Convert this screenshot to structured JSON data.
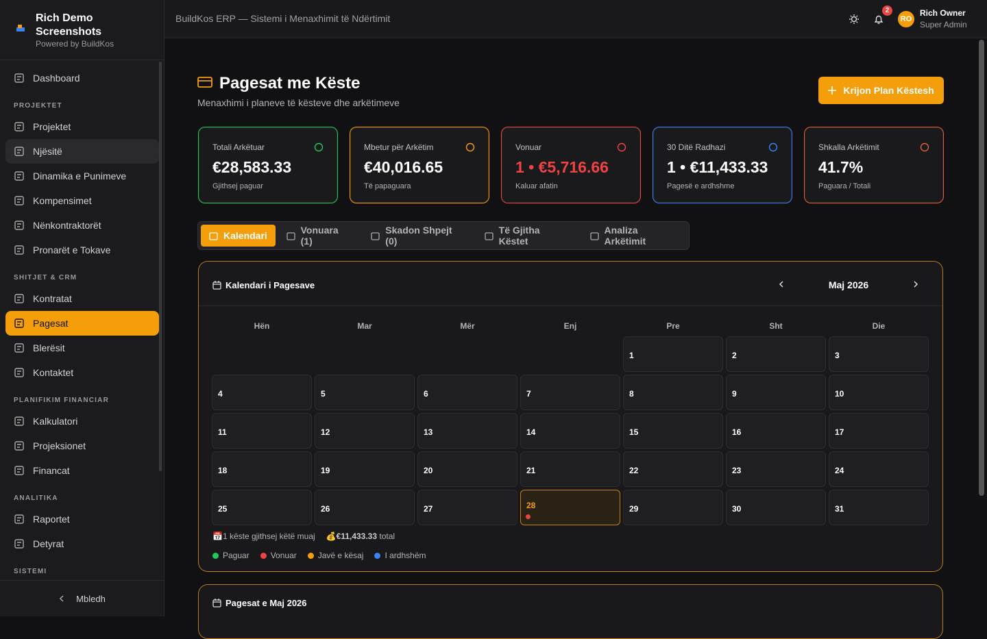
{
  "sidebar": {
    "brand": {
      "title": "Rich Demo Screenshots",
      "subtitle": "Powered by BuildKos"
    },
    "nav": [
      {
        "items": [
          {
            "label": "Dashboard"
          }
        ]
      },
      {
        "section": "PROJEKTET",
        "items": [
          {
            "label": "Projektet"
          },
          {
            "label": "Njësitë",
            "hover": true
          },
          {
            "label": "Dinamika e Punimeve"
          },
          {
            "label": "Kompensimet"
          },
          {
            "label": "Nënkontraktorët"
          },
          {
            "label": "Pronarët e Tokave"
          }
        ]
      },
      {
        "section": "SHITJET & CRM",
        "items": [
          {
            "label": "Kontratat"
          },
          {
            "label": "Pagesat",
            "active": true
          },
          {
            "label": "Blerësit"
          },
          {
            "label": "Kontaktet"
          }
        ]
      },
      {
        "section": "PLANIFIKIM FINANCIAR",
        "items": [
          {
            "label": "Kalkulatori"
          },
          {
            "label": "Projeksionet"
          },
          {
            "label": "Financat"
          }
        ]
      },
      {
        "section": "ANALITIKA",
        "items": [
          {
            "label": "Raportet"
          },
          {
            "label": "Detyrat"
          }
        ]
      },
      {
        "section": "SISTEMI",
        "items": []
      }
    ],
    "collapse": "Mbledh"
  },
  "header": {
    "title": "BuildKos ERP — Sistemi i Menaxhimit të Ndërtimit",
    "notifications": 2,
    "avatar": "RO",
    "user_name": "Rich Owner",
    "user_role": "Super Admin"
  },
  "page": {
    "title": "Pagesat me Këste",
    "subtitle": "Menaxhimi i planeve të kësteve dhe arkëtimeve",
    "action": "Krijon Plan Këstesh"
  },
  "stats": [
    {
      "label": "Totali Arkëtuar",
      "value": "€28,583.33",
      "note": "Gjithsej paguar",
      "color": "#22c55e"
    },
    {
      "label": "Mbetur për Arkëtim",
      "value": "€40,016.65",
      "note": "Të papaguara",
      "color": "#f59e0b"
    },
    {
      "label": "Vonuar",
      "value": "1 • €5,716.66",
      "note": "Kaluar afatin",
      "color": "#ef4444",
      "value_color": "#ef4444"
    },
    {
      "label": "30 Ditë Radhazi",
      "value": "1 • €11,433.33",
      "note": "Pagesë e ardhshme",
      "color": "#3b82f6"
    },
    {
      "label": "Shkalla Arkëtimit",
      "value": "41.7%",
      "note": "Paguara / Totali",
      "color": "#e0603a"
    }
  ],
  "tabs": [
    {
      "label": "Kalendari",
      "active": true
    },
    {
      "label": "Vonuara (1)"
    },
    {
      "label": "Skadon Shpejt (0)"
    },
    {
      "label": "Të Gjitha Këstet"
    },
    {
      "label": "Analiza Arkëtimit"
    }
  ],
  "calendar": {
    "title": "Kalendari i Pagesave",
    "month": "Maj 2026",
    "weekdays": [
      "Hën",
      "Mar",
      "Mër",
      "Enj",
      "Pre",
      "Sht",
      "Die"
    ],
    "weeks": [
      [
        null,
        null,
        null,
        null,
        1,
        2,
        3
      ],
      [
        4,
        5,
        6,
        7,
        8,
        9,
        10
      ],
      [
        11,
        12,
        13,
        14,
        15,
        16,
        17
      ],
      [
        18,
        19,
        20,
        21,
        22,
        23,
        24
      ],
      [
        25,
        26,
        27,
        28,
        29,
        30,
        31
      ]
    ],
    "today": 28,
    "due_days": [
      28
    ],
    "due_color": "#ef4444",
    "summary_count": "📅1 këste gjithsej këtë muaj",
    "summary_amount": "💰€11,433.33",
    "summary_suffix": "total",
    "legend": [
      {
        "name": "Paguar",
        "color": "#22c55e"
      },
      {
        "name": "Vonuar",
        "color": "#ef4444"
      },
      {
        "name": "Javë e kësaj",
        "color": "#f59e0b"
      },
      {
        "name": "I ardhshëm",
        "color": "#3b82f6"
      }
    ]
  },
  "payments": {
    "title": "Pagesat e Maj 2026"
  }
}
